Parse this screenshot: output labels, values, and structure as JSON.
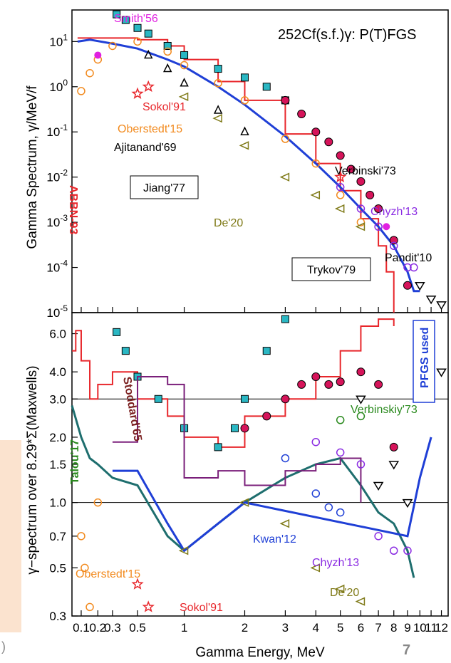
{
  "page": {
    "page_number": "7",
    "cut_text": ")"
  },
  "chart_data": [
    {
      "type": "line",
      "panel": "top",
      "title": "252Cf(s.f.)γ:  P(T)FGS",
      "ylabel": "Gamma Spectrum, γ/MeV/f",
      "yscale": "log",
      "ylim": [
        1e-05,
        50
      ],
      "xscale": "log-shifted",
      "xlim": [
        0.05,
        12.7
      ],
      "y_ticks": [
        "10^1",
        "10^0",
        "10^-1",
        "10^-2",
        "10^-3",
        "10^-4",
        "10^-5"
      ],
      "y_tick_values": [
        10,
        1,
        0.1,
        0.01,
        0.001,
        0.0001,
        1e-05
      ],
      "series": [
        {
          "name": "ABBN-93",
          "color": "#e8262b",
          "style": "step",
          "x": [
            0.08,
            0.3,
            0.5,
            0.8,
            1.0,
            1.5,
            2.0,
            3.0,
            4.0,
            5.0,
            6.0,
            7.0,
            7.5,
            8.0
          ],
          "y": [
            12,
            12,
            11,
            8,
            4,
            1.3,
            0.5,
            0.09,
            0.02,
            0.005,
            0.0012,
            0.0003,
            8e-05,
            1e-05
          ]
        },
        {
          "name": "PFGS used",
          "color": "#1f3fd6",
          "style": "line",
          "x": [
            0.08,
            0.15,
            0.3,
            0.5,
            0.8,
            1.0,
            1.5,
            2.0,
            3.0,
            4.0,
            5.0,
            6.0,
            7.0,
            8.0,
            9.0,
            9.5,
            10.0
          ],
          "y": [
            10,
            11,
            9,
            7,
            4,
            2.8,
            1.0,
            0.4,
            0.08,
            0.02,
            0.006,
            0.002,
            0.0008,
            0.0003,
            8e-05,
            3e-05,
            3e-05
          ]
        },
        {
          "name": "Jiang'77",
          "color": "#2ab7c3",
          "style": "squares",
          "x": [
            0.33,
            0.4,
            0.5,
            0.6,
            0.8,
            1.0,
            1.5,
            2.0,
            2.5,
            3.0
          ],
          "y": [
            40,
            30,
            20,
            15,
            8,
            5,
            2.5,
            1.6,
            1.0,
            0.5
          ]
        },
        {
          "name": "Trykov'79",
          "color": "#d6145a",
          "style": "circles",
          "x": [
            3.0,
            3.5,
            4.0,
            4.5,
            5.0,
            5.5,
            6.0,
            6.5,
            7.0,
            8.0,
            9.0
          ],
          "y": [
            0.5,
            0.25,
            0.1,
            0.06,
            0.03,
            0.015,
            0.008,
            0.004,
            0.002,
            0.0004,
            4e-05
          ]
        },
        {
          "name": "Oberstedt'15",
          "color": "#f28a1e",
          "style": "open-circles",
          "x": [
            0.1,
            0.15,
            0.2,
            0.3,
            0.5,
            0.8,
            1.0,
            1.5,
            2.0,
            3.0,
            4.0,
            5.0,
            6.0
          ],
          "y": [
            0.8,
            2.0,
            4.0,
            8,
            10,
            6,
            3,
            1.2,
            0.5,
            0.07,
            0.02,
            0.004,
            0.001
          ]
        },
        {
          "name": "De'20",
          "color": "#7f7a18",
          "style": "triangles-left",
          "x": [
            1.0,
            1.5,
            2.0,
            3.0,
            4.0,
            5.0,
            6.0
          ],
          "y": [
            0.6,
            0.2,
            0.05,
            0.01,
            0.004,
            0.002,
            0.0008
          ]
        },
        {
          "name": "Ajitanand'69",
          "color": "#000000",
          "style": "open-triangles",
          "x": [
            0.6,
            0.8,
            1.0,
            1.5,
            2.0
          ],
          "y": [
            5,
            2.5,
            1.2,
            0.3,
            0.1
          ]
        },
        {
          "name": "Chyzh'13",
          "color": "#8a2be2",
          "style": "open-circles",
          "x": [
            5.0,
            6.0,
            7.0,
            8.0,
            9.0,
            9.5
          ],
          "y": [
            0.006,
            0.002,
            0.0008,
            0.0003,
            0.0001,
            0.0001
          ]
        },
        {
          "name": "Sokol'91",
          "color": "#e8262b",
          "style": "open-stars",
          "x": [
            0.5,
            0.6,
            5.0
          ],
          "y": [
            0.7,
            1.0,
            0.01
          ]
        },
        {
          "name": "Pandit'10",
          "color": "#000000",
          "style": "open-triangles-down",
          "x": [
            10.0,
            11.0,
            12.0
          ],
          "y": [
            4e-05,
            2e-05,
            1.5e-05
          ]
        },
        {
          "name": "Smith'56",
          "color": "#e020e0",
          "style": "filled-circles",
          "x": [
            0.2,
            7.5
          ],
          "y": [
            5,
            0.0008
          ]
        }
      ],
      "annotations": [
        "Smith'56",
        "Sokol'91",
        "Oberstedt'15",
        "Ajitanand'69",
        "Jiang'77",
        "Verbinski'73",
        "De'20",
        "Chyzh'13",
        "Trykov'79",
        "Pandit'10",
        "ABBN-93"
      ]
    },
    {
      "type": "line",
      "panel": "bottom",
      "ylabel": "γ−spectrum over 8.29*Σ(Maxwells)",
      "xlabel": "Gamma Energy, MeV",
      "yscale": "log",
      "ylim": [
        0.3,
        7.5
      ],
      "x_ticks": [
        "0.1",
        "0.2",
        "0.3",
        "0.5",
        "1",
        "2",
        "3",
        "4",
        "5",
        "6",
        "7",
        "8",
        "9",
        "10",
        "11",
        "12"
      ],
      "y_ticks": [
        "6.0",
        "4.0",
        "3.0",
        "2.0",
        "1.5",
        "1.0",
        "0.7",
        "0.5",
        "0.3"
      ],
      "y_tick_values": [
        6.0,
        4.0,
        3.0,
        2.0,
        1.5,
        1.0,
        0.7,
        0.5,
        0.3
      ],
      "series": [
        {
          "name": "ABBN-93",
          "color": "#e8262b",
          "style": "step",
          "x": [
            0.05,
            0.07,
            0.1,
            0.15,
            0.2,
            0.3,
            0.5,
            0.8,
            1.0,
            1.5,
            2.0,
            3.0,
            4.0,
            5.0,
            6.0,
            7.0,
            8.0
          ],
          "y": [
            5.0,
            6.2,
            4.5,
            3.0,
            3.5,
            4.0,
            3.0,
            2.5,
            2.0,
            1.8,
            2.5,
            3.0,
            3.8,
            5.0,
            6.5,
            7.0,
            6.5
          ]
        },
        {
          "name": "Talou'17",
          "color": "#1e6e6e",
          "style": "line",
          "x": [
            0.05,
            0.1,
            0.15,
            0.2,
            0.3,
            0.5,
            0.8,
            1.0,
            1.5,
            2.0,
            3.0,
            4.0,
            5.0,
            6.0,
            7.0,
            8.0,
            9.0,
            9.5
          ],
          "y": [
            2.8,
            2.0,
            1.6,
            1.5,
            1.3,
            1.2,
            0.7,
            0.6,
            0.8,
            1.0,
            1.3,
            1.5,
            1.6,
            1.2,
            0.9,
            0.8,
            0.6,
            0.45
          ]
        },
        {
          "name": "PFGS used",
          "color": "#1f3fd6",
          "style": "line",
          "x": [
            0.3,
            0.5,
            0.8,
            1.0,
            1.5,
            2.0,
            9.0,
            10.0,
            11.0
          ],
          "y": [
            1.4,
            1.4,
            0.8,
            0.6,
            0.8,
            1.0,
            0.7,
            1.3,
            2.0
          ]
        },
        {
          "name": "Jiang'77",
          "color": "#2ab7c3",
          "style": "squares",
          "x": [
            0.33,
            0.4,
            0.5,
            0.7,
            1.0,
            1.5,
            1.8,
            2.0,
            2.5,
            3.0
          ],
          "y": [
            6.1,
            5.0,
            3.8,
            3.0,
            2.2,
            1.8,
            2.2,
            3.0,
            5.0,
            7.0
          ]
        },
        {
          "name": "Trykov'79",
          "color": "#d6145a",
          "style": "circles",
          "x": [
            2.0,
            2.5,
            3.0,
            3.5,
            4.0,
            4.5,
            5.0,
            6.0,
            7.0,
            8.0
          ],
          "y": [
            2.2,
            2.5,
            3.0,
            3.5,
            3.8,
            3.5,
            3.6,
            4.0,
            3.5,
            1.8
          ]
        },
        {
          "name": "Stoddard'65",
          "color": "#7a1f7a",
          "style": "step",
          "x": [
            0.3,
            0.5,
            0.8,
            1.0,
            1.5,
            2.0,
            3.0,
            4.0,
            5.0,
            6.0
          ],
          "y": [
            1.9,
            3.8,
            3.5,
            1.3,
            1.4,
            1.2,
            1.4,
            1.5,
            1.6,
            1.0
          ]
        },
        {
          "name": "Oberstedt'15",
          "color": "#f28a1e",
          "style": "open-circles",
          "x": [
            0.1,
            0.12,
            0.15,
            0.2
          ],
          "y": [
            0.7,
            0.5,
            0.33,
            1.0
          ]
        },
        {
          "name": "Verbinskiy'73",
          "color": "#2a8a1e",
          "style": "open-circles",
          "x": [
            5.0,
            6.0
          ],
          "y": [
            2.4,
            2.5
          ]
        },
        {
          "name": "Kwan'12",
          "color": "#1f3fd6",
          "style": "open-circles",
          "x": [
            3.0,
            4.0,
            4.5,
            5.0
          ],
          "y": [
            1.6,
            1.1,
            0.95,
            0.9
          ]
        },
        {
          "name": "Chyzh'13",
          "color": "#8a2be2",
          "style": "open-circles",
          "x": [
            4.0,
            5.0,
            6.0,
            7.0,
            8.0,
            9.0
          ],
          "y": [
            1.9,
            1.7,
            1.5,
            0.7,
            0.6,
            0.6
          ]
        },
        {
          "name": "De'20",
          "color": "#7f7a18",
          "style": "triangles-left",
          "x": [
            1.0,
            2.0,
            3.0,
            4.0,
            5.0,
            6.0
          ],
          "y": [
            0.6,
            1.0,
            0.8,
            0.5,
            0.4,
            0.35
          ]
        },
        {
          "name": "Sokol'91",
          "color": "#e8262b",
          "style": "open-stars",
          "x": [
            0.5,
            0.6
          ],
          "y": [
            0.42,
            0.33
          ]
        },
        {
          "name": "Pandit'10",
          "color": "#000000",
          "style": "open-triangles-down",
          "x": [
            6.0,
            7.0,
            8.0,
            9.0,
            12.0
          ],
          "y": [
            3.0,
            1.2,
            1.5,
            1.0,
            4.0
          ]
        }
      ],
      "annotations": [
        "Stoddard'65",
        "Verbinskiy'73",
        "PFGS used",
        "Talou'17",
        "Kwan'12",
        "Chyzh'13",
        "Oberstedt'15",
        "De'20",
        "Sokol'91"
      ]
    }
  ]
}
